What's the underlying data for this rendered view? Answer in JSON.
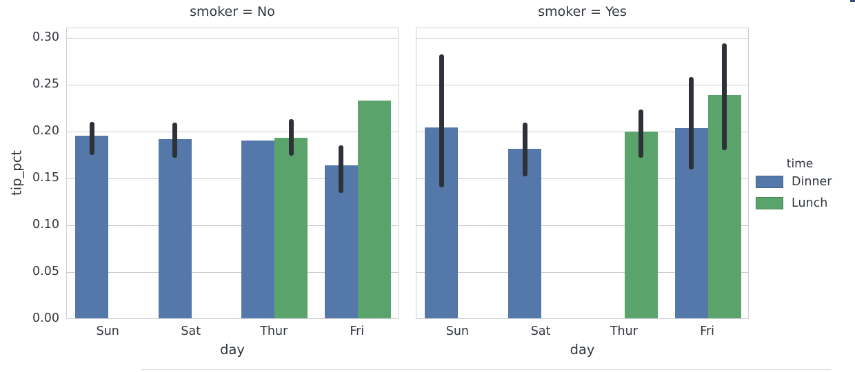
{
  "chart_data": {
    "type": "bar",
    "facet_by": "smoker",
    "categories": [
      "Sun",
      "Sat",
      "Thur",
      "Fri"
    ],
    "xlabel": "day",
    "ylabel": "tip_pct",
    "ylim": [
      0,
      0.311
    ],
    "yticks": [
      0.0,
      0.05,
      0.1,
      0.15,
      0.2,
      0.25,
      0.3
    ],
    "grid": true,
    "error_bar_color": "#2e3238",
    "legend": {
      "title": "time",
      "position": "right",
      "entries": [
        {
          "label": "Dinner",
          "color": "#5578ab"
        },
        {
          "label": "Lunch",
          "color": "#5aa36a"
        }
      ]
    },
    "facets": [
      {
        "title": "smoker = No",
        "series": [
          {
            "name": "Dinner",
            "color": "#5578ab",
            "values": [
              0.195,
              0.191,
              0.19,
              0.163
            ],
            "err_low": [
              0.176,
              0.173,
              null,
              0.135
            ],
            "err_high": [
              0.211,
              0.21,
              null,
              0.186
            ]
          },
          {
            "name": "Lunch",
            "color": "#5aa36a",
            "values": [
              null,
              null,
              0.193,
              0.232
            ],
            "err_low": [
              null,
              null,
              0.175,
              null
            ],
            "err_high": [
              null,
              null,
              0.214,
              null
            ]
          }
        ]
      },
      {
        "title": "smoker = Yes",
        "series": [
          {
            "name": "Dinner",
            "color": "#5578ab",
            "values": [
              0.204,
              0.181,
              null,
              0.203
            ],
            "err_low": [
              0.141,
              0.153,
              null,
              0.16
            ],
            "err_high": [
              0.283,
              0.21,
              null,
              0.259
            ]
          },
          {
            "name": "Lunch",
            "color": "#5aa36a",
            "values": [
              null,
              null,
              0.199,
              0.238
            ],
            "err_low": [
              null,
              null,
              0.173,
              0.181
            ],
            "err_high": [
              null,
              null,
              0.224,
              0.295
            ]
          }
        ]
      }
    ]
  }
}
